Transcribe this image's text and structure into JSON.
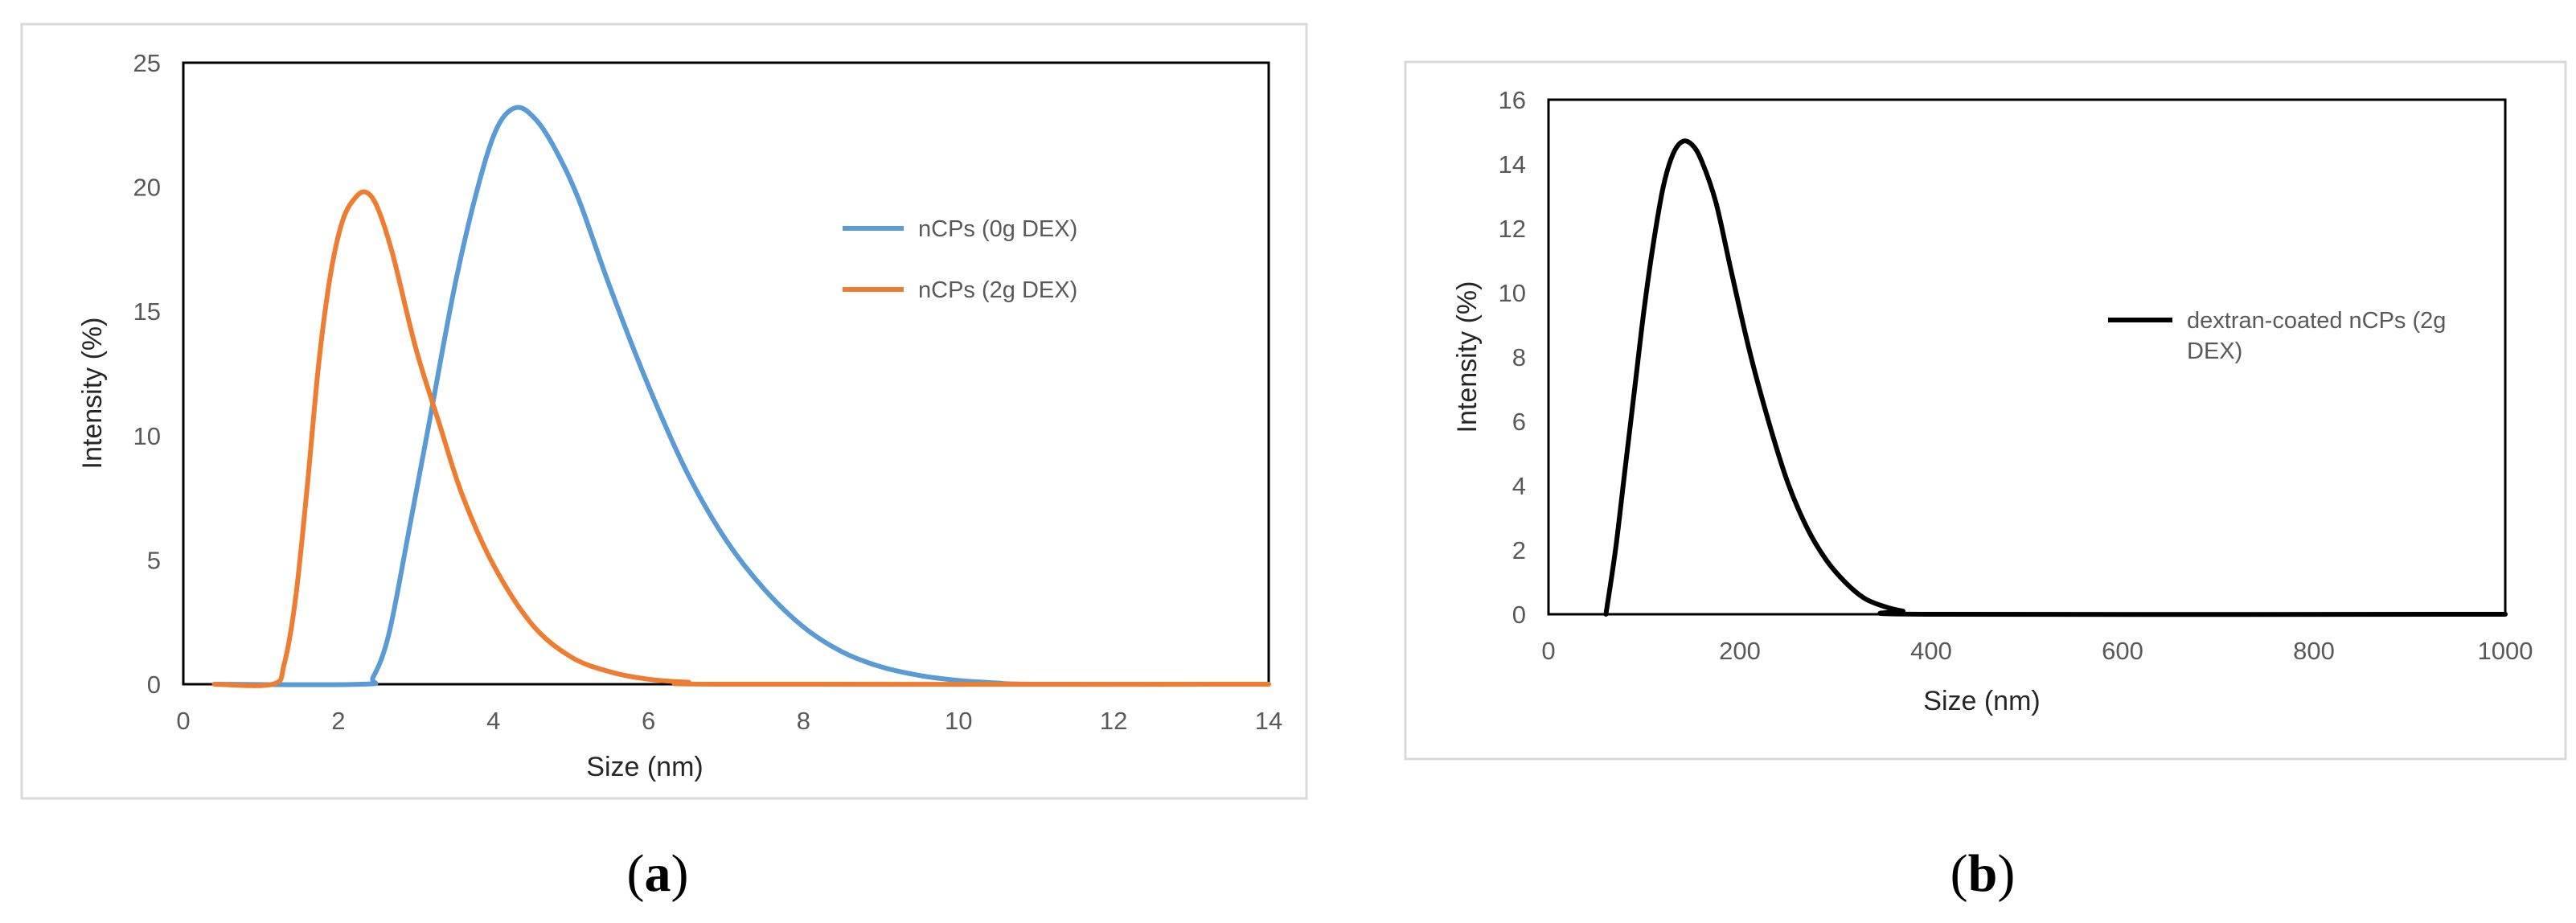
{
  "chart_data": [
    {
      "type": "line",
      "panel_label": "a",
      "title": "",
      "xlabel": "Size (nm)",
      "ylabel": "Intensity (%)",
      "xlim": [
        0,
        14
      ],
      "ylim": [
        0,
        25
      ],
      "xticks": [
        0,
        2,
        4,
        6,
        8,
        10,
        12,
        14
      ],
      "yticks": [
        0,
        5,
        10,
        15,
        20,
        25
      ],
      "grid": false,
      "legend_position": "right",
      "series": [
        {
          "name": "nCPs (0g DEX)",
          "color": "#5B9BD5",
          "points": [
            [
              0.4,
              0
            ],
            [
              2.3,
              0
            ],
            [
              2.45,
              0.3
            ],
            [
              2.65,
              2
            ],
            [
              2.9,
              6
            ],
            [
              3.2,
              11
            ],
            [
              3.5,
              16
            ],
            [
              3.8,
              20
            ],
            [
              4.05,
              22.4
            ],
            [
              4.3,
              23.2
            ],
            [
              4.55,
              22.7
            ],
            [
              4.8,
              21.5
            ],
            [
              5.1,
              19.5
            ],
            [
              5.5,
              16
            ],
            [
              6.0,
              12
            ],
            [
              6.5,
              8.5
            ],
            [
              7.0,
              5.8
            ],
            [
              7.5,
              3.8
            ],
            [
              8.0,
              2.3
            ],
            [
              8.5,
              1.3
            ],
            [
              9.0,
              0.7
            ],
            [
              9.5,
              0.35
            ],
            [
              10.0,
              0.15
            ],
            [
              10.5,
              0.05
            ],
            [
              11.0,
              0
            ],
            [
              14.0,
              0
            ]
          ]
        },
        {
          "name": "nCPs (2g DEX)",
          "color": "#ED7D31",
          "points": [
            [
              0.4,
              0
            ],
            [
              1.15,
              0
            ],
            [
              1.3,
              0.8
            ],
            [
              1.45,
              3.5
            ],
            [
              1.6,
              8
            ],
            [
              1.75,
              13
            ],
            [
              1.9,
              16.5
            ],
            [
              2.05,
              18.6
            ],
            [
              2.2,
              19.5
            ],
            [
              2.35,
              19.8
            ],
            [
              2.5,
              19.2
            ],
            [
              2.7,
              17.3
            ],
            [
              3.0,
              13.5
            ],
            [
              3.3,
              10.5
            ],
            [
              3.6,
              7.6
            ],
            [
              4.0,
              4.8
            ],
            [
              4.5,
              2.4
            ],
            [
              5.0,
              1.1
            ],
            [
              5.5,
              0.5
            ],
            [
              6.0,
              0.2
            ],
            [
              6.5,
              0.08
            ],
            [
              7.0,
              0
            ],
            [
              14.0,
              0
            ]
          ]
        }
      ]
    },
    {
      "type": "line",
      "panel_label": "b",
      "title": "",
      "xlabel": "Size (nm)",
      "ylabel": "Intensity (%)",
      "xlim": [
        0,
        1000
      ],
      "ylim": [
        0,
        16
      ],
      "xticks": [
        0,
        200,
        400,
        600,
        800,
        1000
      ],
      "yticks": [
        0,
        2,
        4,
        6,
        8,
        10,
        12,
        14,
        16
      ],
      "grid": false,
      "legend_position": "right",
      "series": [
        {
          "name": "dextran-coated nCPs (2g DEX)",
          "legend_lines": [
            "dextran-coated nCPs (2g",
            "DEX)"
          ],
          "color": "#000000",
          "points": [
            [
              60,
              0
            ],
            [
              70,
              2
            ],
            [
              80,
              4.5
            ],
            [
              90,
              7
            ],
            [
              100,
              9.5
            ],
            [
              110,
              11.6
            ],
            [
              120,
              13.3
            ],
            [
              130,
              14.3
            ],
            [
              140,
              14.7
            ],
            [
              150,
              14.6
            ],
            [
              160,
              14.1
            ],
            [
              175,
              12.8
            ],
            [
              190,
              10.8
            ],
            [
              210,
              8.2
            ],
            [
              230,
              6
            ],
            [
              250,
              4.1
            ],
            [
              270,
              2.7
            ],
            [
              290,
              1.7
            ],
            [
              310,
              1
            ],
            [
              330,
              0.5
            ],
            [
              350,
              0.25
            ],
            [
              370,
              0.1
            ],
            [
              400,
              0
            ],
            [
              1000,
              0
            ]
          ]
        }
      ]
    }
  ]
}
